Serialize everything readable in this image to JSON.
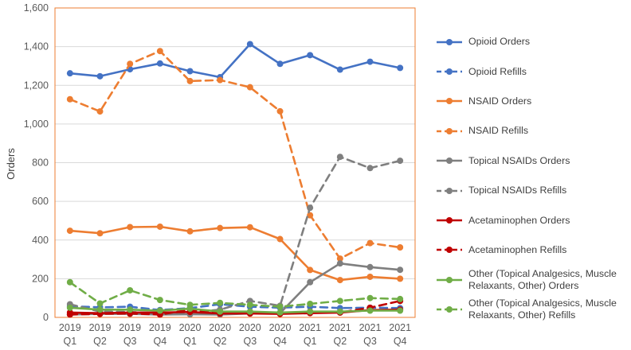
{
  "chart_data": {
    "type": "line",
    "title": "",
    "xlabel": "",
    "ylabel": "Orders",
    "ylim": [
      0,
      1600
    ],
    "yticks": [
      0,
      200,
      400,
      600,
      800,
      1000,
      1200,
      1400,
      1600
    ],
    "ytick_labels": [
      "0",
      "200",
      "400",
      "600",
      "800",
      "1,000",
      "1,200",
      "1,400",
      "1,600"
    ],
    "categories": [
      {
        "year": "2019",
        "quarter": "Q1"
      },
      {
        "year": "2019",
        "quarter": "Q2"
      },
      {
        "year": "2019",
        "quarter": "Q3"
      },
      {
        "year": "2019",
        "quarter": "Q4"
      },
      {
        "year": "2020",
        "quarter": "Q1"
      },
      {
        "year": "2020",
        "quarter": "Q2"
      },
      {
        "year": "2020",
        "quarter": "Q3"
      },
      {
        "year": "2020",
        "quarter": "Q4"
      },
      {
        "year": "2021",
        "quarter": "Q1"
      },
      {
        "year": "2021",
        "quarter": "Q2"
      },
      {
        "year": "2021",
        "quarter": "Q3"
      },
      {
        "year": "2021",
        "quarter": "Q4"
      }
    ],
    "grid": "horizontal",
    "legend_position": "right",
    "series": [
      {
        "name": "Opioid Orders",
        "color": "#4472c4",
        "dash": false,
        "values": [
          1262,
          1247,
          1283,
          1313,
          1273,
          1242,
          1413,
          1311,
          1356,
          1281,
          1322,
          1290
        ]
      },
      {
        "name": "Opioid Refills",
        "color": "#4472c4",
        "dash": true,
        "values": [
          58,
          52,
          55,
          38,
          48,
          68,
          55,
          50,
          55,
          48,
          50,
          48
        ]
      },
      {
        "name": "NSAID Orders",
        "color": "#ed7d31",
        "dash": false,
        "values": [
          448,
          435,
          467,
          469,
          445,
          462,
          466,
          405,
          245,
          193,
          210,
          200
        ]
      },
      {
        "name": "NSAID Refills",
        "color": "#ed7d31",
        "dash": true,
        "values": [
          1128,
          1065,
          1311,
          1377,
          1222,
          1227,
          1190,
          1066,
          528,
          304,
          384,
          362
        ]
      },
      {
        "name": "Topical NSAIDs Orders",
        "color": "#7f7f7f",
        "dash": false,
        "values": [
          15,
          18,
          18,
          15,
          16,
          15,
          20,
          22,
          182,
          279,
          260,
          246
        ]
      },
      {
        "name": "Topical NSAIDs Refills",
        "color": "#7f7f7f",
        "dash": true,
        "values": [
          68,
          30,
          28,
          22,
          25,
          40,
          85,
          60,
          567,
          830,
          772,
          810
        ]
      },
      {
        "name": "Acetaminophen Orders",
        "color": "#c00000",
        "dash": false,
        "values": [
          25,
          22,
          25,
          25,
          28,
          20,
          20,
          18,
          22,
          25,
          38,
          40
        ]
      },
      {
        "name": "Acetaminophen Refills",
        "color": "#c00000",
        "dash": true,
        "values": [
          15,
          18,
          20,
          15,
          40,
          20,
          25,
          20,
          30,
          25,
          50,
          85
        ]
      },
      {
        "name": "Other (Topical Analgesics, Muscle Relaxants, Other) Orders",
        "color": "#70ad47",
        "dash": false,
        "values": [
          50,
          40,
          40,
          35,
          45,
          30,
          30,
          25,
          30,
          30,
          35,
          35
        ]
      },
      {
        "name": "Other (Topical Analgesics, Muscle Relaxants, Other) Refills",
        "color": "#70ad47",
        "dash": true,
        "values": [
          182,
          72,
          140,
          90,
          65,
          75,
          65,
          55,
          70,
          85,
          100,
          95
        ]
      }
    ]
  }
}
